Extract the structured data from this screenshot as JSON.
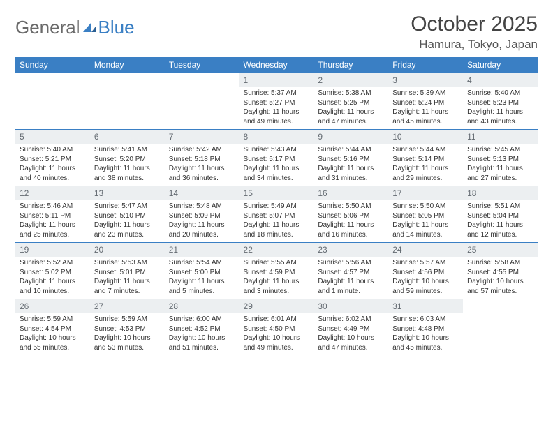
{
  "logo": {
    "text_general": "General",
    "text_blue": "Blue"
  },
  "title": "October 2025",
  "location": "Hamura, Tokyo, Japan",
  "colors": {
    "header_bg": "#3a7fc4",
    "header_text": "#ffffff",
    "daynum_bg": "#eceff1",
    "daynum_text": "#646b72",
    "body_text": "#333333",
    "title_text": "#444444",
    "location_text": "#555555",
    "logo_gray": "#6a6a6a",
    "logo_blue": "#3a7fc4",
    "rule": "#3a7fc4"
  },
  "day_headers": [
    "Sunday",
    "Monday",
    "Tuesday",
    "Wednesday",
    "Thursday",
    "Friday",
    "Saturday"
  ],
  "weeks": [
    [
      null,
      null,
      null,
      {
        "n": "1",
        "sunrise": "Sunrise: 5:37 AM",
        "sunset": "Sunset: 5:27 PM",
        "daylight": "Daylight: 11 hours and 49 minutes."
      },
      {
        "n": "2",
        "sunrise": "Sunrise: 5:38 AM",
        "sunset": "Sunset: 5:25 PM",
        "daylight": "Daylight: 11 hours and 47 minutes."
      },
      {
        "n": "3",
        "sunrise": "Sunrise: 5:39 AM",
        "sunset": "Sunset: 5:24 PM",
        "daylight": "Daylight: 11 hours and 45 minutes."
      },
      {
        "n": "4",
        "sunrise": "Sunrise: 5:40 AM",
        "sunset": "Sunset: 5:23 PM",
        "daylight": "Daylight: 11 hours and 43 minutes."
      }
    ],
    [
      {
        "n": "5",
        "sunrise": "Sunrise: 5:40 AM",
        "sunset": "Sunset: 5:21 PM",
        "daylight": "Daylight: 11 hours and 40 minutes."
      },
      {
        "n": "6",
        "sunrise": "Sunrise: 5:41 AM",
        "sunset": "Sunset: 5:20 PM",
        "daylight": "Daylight: 11 hours and 38 minutes."
      },
      {
        "n": "7",
        "sunrise": "Sunrise: 5:42 AM",
        "sunset": "Sunset: 5:18 PM",
        "daylight": "Daylight: 11 hours and 36 minutes."
      },
      {
        "n": "8",
        "sunrise": "Sunrise: 5:43 AM",
        "sunset": "Sunset: 5:17 PM",
        "daylight": "Daylight: 11 hours and 34 minutes."
      },
      {
        "n": "9",
        "sunrise": "Sunrise: 5:44 AM",
        "sunset": "Sunset: 5:16 PM",
        "daylight": "Daylight: 11 hours and 31 minutes."
      },
      {
        "n": "10",
        "sunrise": "Sunrise: 5:44 AM",
        "sunset": "Sunset: 5:14 PM",
        "daylight": "Daylight: 11 hours and 29 minutes."
      },
      {
        "n": "11",
        "sunrise": "Sunrise: 5:45 AM",
        "sunset": "Sunset: 5:13 PM",
        "daylight": "Daylight: 11 hours and 27 minutes."
      }
    ],
    [
      {
        "n": "12",
        "sunrise": "Sunrise: 5:46 AM",
        "sunset": "Sunset: 5:11 PM",
        "daylight": "Daylight: 11 hours and 25 minutes."
      },
      {
        "n": "13",
        "sunrise": "Sunrise: 5:47 AM",
        "sunset": "Sunset: 5:10 PM",
        "daylight": "Daylight: 11 hours and 23 minutes."
      },
      {
        "n": "14",
        "sunrise": "Sunrise: 5:48 AM",
        "sunset": "Sunset: 5:09 PM",
        "daylight": "Daylight: 11 hours and 20 minutes."
      },
      {
        "n": "15",
        "sunrise": "Sunrise: 5:49 AM",
        "sunset": "Sunset: 5:07 PM",
        "daylight": "Daylight: 11 hours and 18 minutes."
      },
      {
        "n": "16",
        "sunrise": "Sunrise: 5:50 AM",
        "sunset": "Sunset: 5:06 PM",
        "daylight": "Daylight: 11 hours and 16 minutes."
      },
      {
        "n": "17",
        "sunrise": "Sunrise: 5:50 AM",
        "sunset": "Sunset: 5:05 PM",
        "daylight": "Daylight: 11 hours and 14 minutes."
      },
      {
        "n": "18",
        "sunrise": "Sunrise: 5:51 AM",
        "sunset": "Sunset: 5:04 PM",
        "daylight": "Daylight: 11 hours and 12 minutes."
      }
    ],
    [
      {
        "n": "19",
        "sunrise": "Sunrise: 5:52 AM",
        "sunset": "Sunset: 5:02 PM",
        "daylight": "Daylight: 11 hours and 10 minutes."
      },
      {
        "n": "20",
        "sunrise": "Sunrise: 5:53 AM",
        "sunset": "Sunset: 5:01 PM",
        "daylight": "Daylight: 11 hours and 7 minutes."
      },
      {
        "n": "21",
        "sunrise": "Sunrise: 5:54 AM",
        "sunset": "Sunset: 5:00 PM",
        "daylight": "Daylight: 11 hours and 5 minutes."
      },
      {
        "n": "22",
        "sunrise": "Sunrise: 5:55 AM",
        "sunset": "Sunset: 4:59 PM",
        "daylight": "Daylight: 11 hours and 3 minutes."
      },
      {
        "n": "23",
        "sunrise": "Sunrise: 5:56 AM",
        "sunset": "Sunset: 4:57 PM",
        "daylight": "Daylight: 11 hours and 1 minute."
      },
      {
        "n": "24",
        "sunrise": "Sunrise: 5:57 AM",
        "sunset": "Sunset: 4:56 PM",
        "daylight": "Daylight: 10 hours and 59 minutes."
      },
      {
        "n": "25",
        "sunrise": "Sunrise: 5:58 AM",
        "sunset": "Sunset: 4:55 PM",
        "daylight": "Daylight: 10 hours and 57 minutes."
      }
    ],
    [
      {
        "n": "26",
        "sunrise": "Sunrise: 5:59 AM",
        "sunset": "Sunset: 4:54 PM",
        "daylight": "Daylight: 10 hours and 55 minutes."
      },
      {
        "n": "27",
        "sunrise": "Sunrise: 5:59 AM",
        "sunset": "Sunset: 4:53 PM",
        "daylight": "Daylight: 10 hours and 53 minutes."
      },
      {
        "n": "28",
        "sunrise": "Sunrise: 6:00 AM",
        "sunset": "Sunset: 4:52 PM",
        "daylight": "Daylight: 10 hours and 51 minutes."
      },
      {
        "n": "29",
        "sunrise": "Sunrise: 6:01 AM",
        "sunset": "Sunset: 4:50 PM",
        "daylight": "Daylight: 10 hours and 49 minutes."
      },
      {
        "n": "30",
        "sunrise": "Sunrise: 6:02 AM",
        "sunset": "Sunset: 4:49 PM",
        "daylight": "Daylight: 10 hours and 47 minutes."
      },
      {
        "n": "31",
        "sunrise": "Sunrise: 6:03 AM",
        "sunset": "Sunset: 4:48 PM",
        "daylight": "Daylight: 10 hours and 45 minutes."
      },
      null
    ]
  ]
}
